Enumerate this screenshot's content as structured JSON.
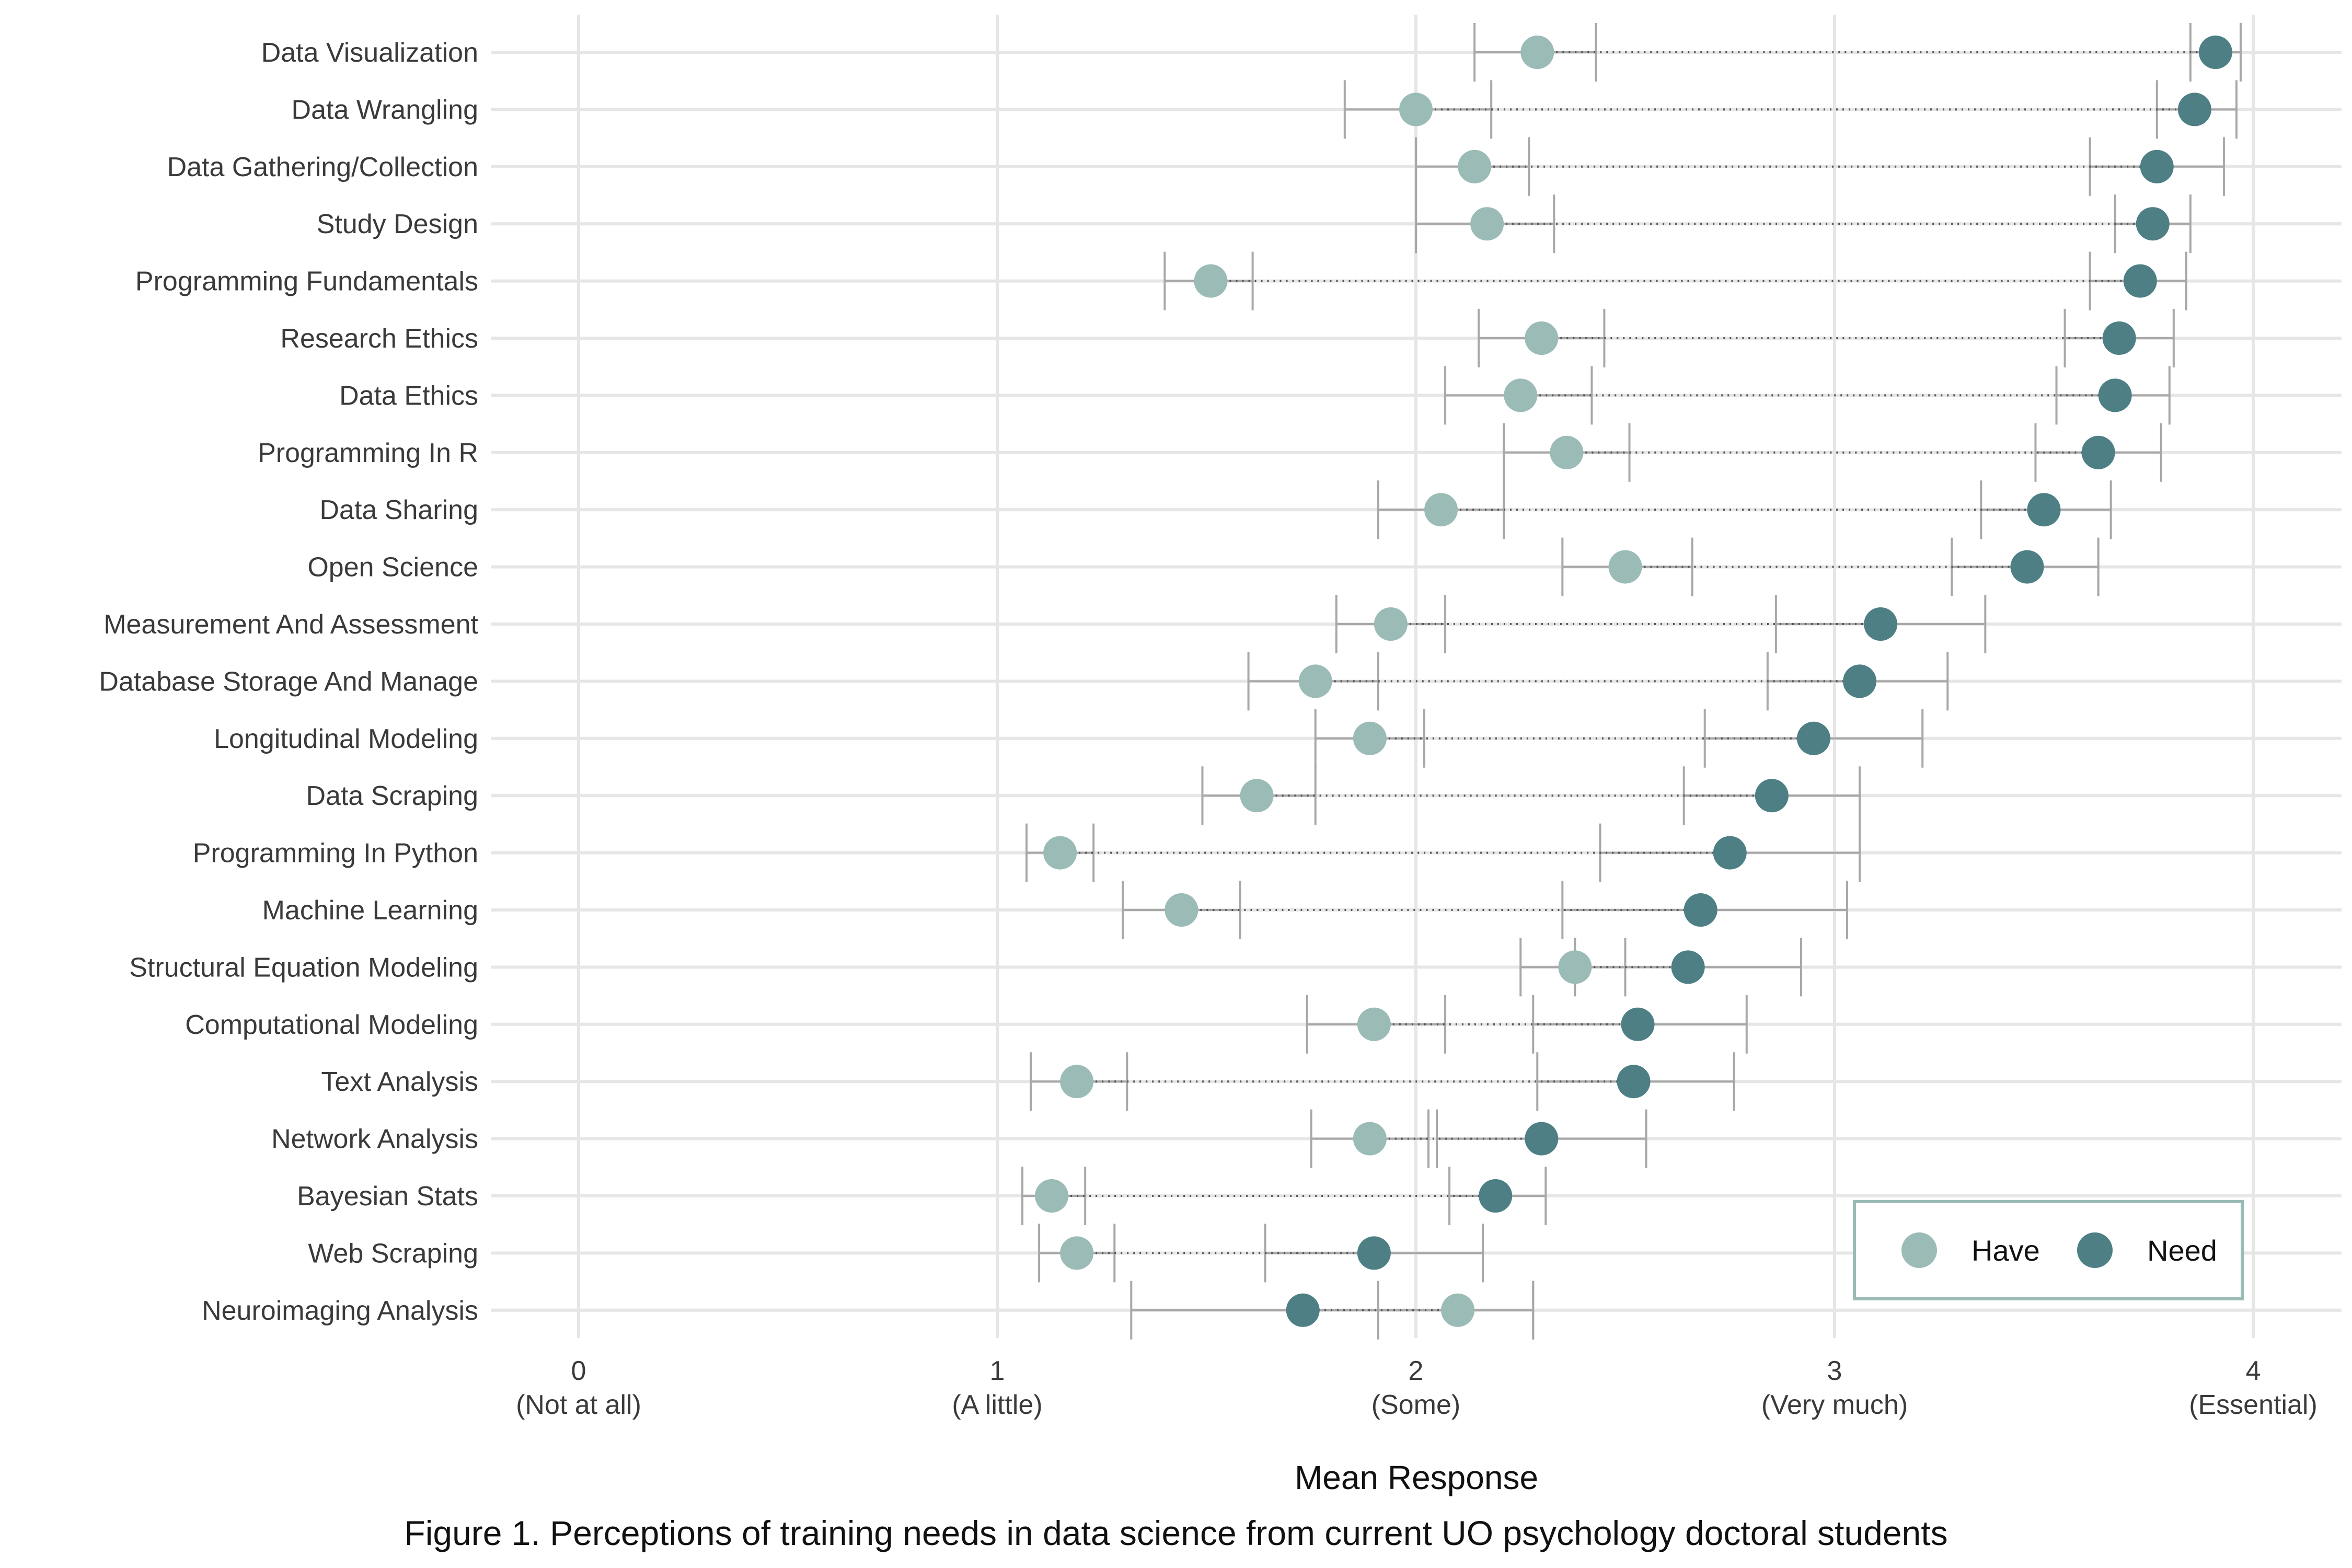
{
  "chart_data": {
    "type": "dumbbell",
    "title": "",
    "xlabel": "Mean Response",
    "caption": "Figure 1. Perceptions of training needs in data science from current UO psychology doctoral students",
    "xlim": [
      0,
      4
    ],
    "x_ticks": [
      {
        "value": 0,
        "label": "0",
        "sublabel": "(Not at all)"
      },
      {
        "value": 1,
        "label": "1",
        "sublabel": "(A little)"
      },
      {
        "value": 2,
        "label": "2",
        "sublabel": "(Some)"
      },
      {
        "value": 3,
        "label": "3",
        "sublabel": "(Very much)"
      },
      {
        "value": 4,
        "label": "4",
        "sublabel": "(Essential)"
      }
    ],
    "grid": true,
    "legend": {
      "placement": "bottom-right",
      "entries": [
        "Have",
        "Need"
      ]
    },
    "colors": {
      "have": "#9bbbb6",
      "need": "#4d7f85",
      "errorbar": "#a8a8a8",
      "connector": "#555555",
      "grid": "#e6e6e6",
      "legend_border": "#9bbbb6"
    },
    "categories": [
      "Data Visualization",
      "Data Wrangling",
      "Data Gathering/Collection",
      "Study Design",
      "Programming Fundamentals",
      "Research Ethics",
      "Data Ethics",
      "Programming In R",
      "Data Sharing",
      "Open Science",
      "Measurement And Assessment",
      "Database Storage And Manage",
      "Longitudinal Modeling",
      "Data Scraping",
      "Programming In Python",
      "Machine Learning",
      "Structural Equation Modeling",
      "Computational Modeling",
      "Text Analysis",
      "Network Analysis",
      "Bayesian Stats",
      "Web Scraping",
      "Neuroimaging Analysis"
    ],
    "series": [
      {
        "name": "Have",
        "values": [
          2.29,
          2.0,
          2.14,
          2.17,
          1.51,
          2.3,
          2.25,
          2.36,
          2.06,
          2.5,
          1.94,
          1.76,
          1.89,
          1.62,
          1.15,
          1.44,
          2.38,
          1.9,
          1.19,
          1.89,
          1.13,
          1.19,
          2.1
        ],
        "ci_low": [
          2.14,
          1.83,
          2.0,
          2.0,
          1.4,
          2.15,
          2.07,
          2.21,
          1.91,
          2.35,
          1.81,
          1.6,
          1.76,
          1.49,
          1.07,
          1.3,
          2.25,
          1.74,
          1.08,
          1.75,
          1.06,
          1.1,
          1.91
        ],
        "ci_high": [
          2.43,
          2.18,
          2.27,
          2.33,
          1.61,
          2.45,
          2.42,
          2.51,
          2.21,
          2.66,
          2.07,
          1.91,
          2.02,
          1.76,
          1.23,
          1.58,
          2.5,
          2.07,
          1.31,
          2.03,
          1.21,
          1.28,
          2.28
        ]
      },
      {
        "name": "Need",
        "values": [
          3.91,
          3.86,
          3.77,
          3.76,
          3.73,
          3.68,
          3.67,
          3.63,
          3.5,
          3.46,
          3.11,
          3.06,
          2.95,
          2.85,
          2.75,
          2.68,
          2.65,
          2.53,
          2.52,
          2.3,
          2.19,
          1.9,
          1.73
        ],
        "ci_low": [
          3.85,
          3.77,
          3.61,
          3.67,
          3.61,
          3.55,
          3.53,
          3.48,
          3.35,
          3.28,
          2.86,
          2.84,
          2.69,
          2.64,
          2.44,
          2.35,
          2.38,
          2.28,
          2.29,
          2.05,
          2.08,
          1.64,
          1.32
        ],
        "ci_high": [
          3.97,
          3.96,
          3.93,
          3.85,
          3.84,
          3.81,
          3.8,
          3.78,
          3.66,
          3.63,
          3.36,
          3.27,
          3.21,
          3.06,
          3.06,
          3.03,
          2.92,
          2.79,
          2.76,
          2.55,
          2.31,
          2.16,
          2.28
        ]
      }
    ]
  }
}
